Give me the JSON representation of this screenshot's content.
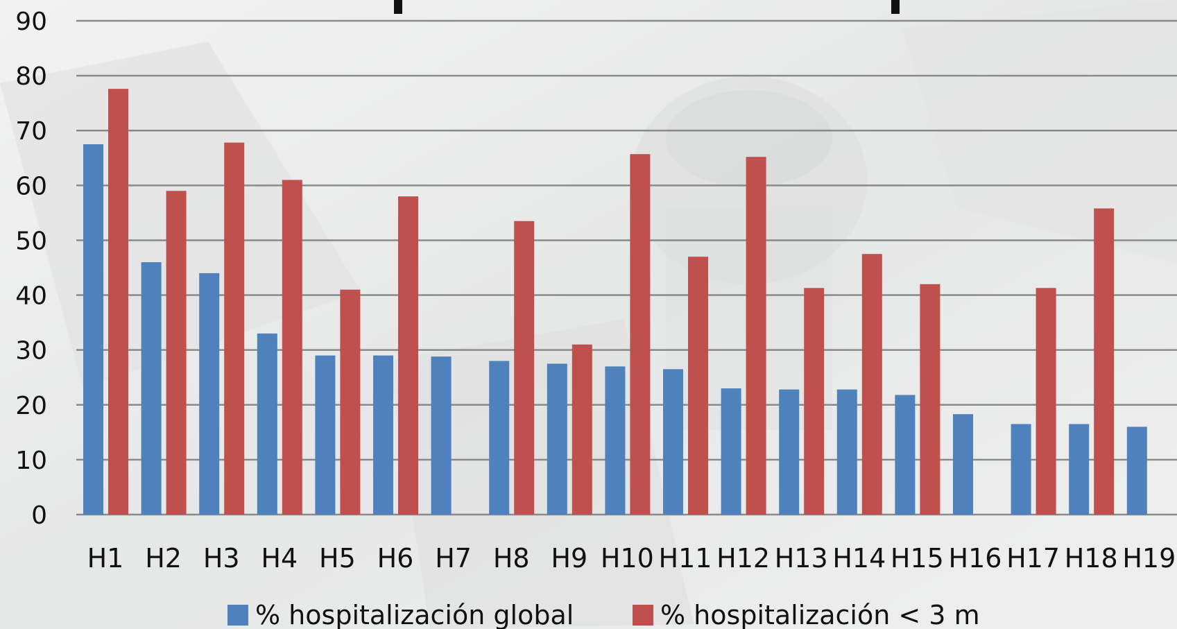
{
  "chart_data": {
    "type": "bar",
    "categories": [
      "H1",
      "H2",
      "H3",
      "H4",
      "H5",
      "H6",
      "H7",
      "H8",
      "H9",
      "H10",
      "H11",
      "H12",
      "H13",
      "H14",
      "H15",
      "H16",
      "H17",
      "H18",
      "H19"
    ],
    "series": [
      {
        "name": "% hospitalización global",
        "color": "#4f81bd",
        "values": [
          67.5,
          46,
          44,
          33,
          29,
          29,
          28.8,
          28,
          27.5,
          27,
          26.5,
          23,
          22.8,
          22.8,
          21.8,
          18.3,
          16.5,
          16.5,
          16
        ]
      },
      {
        "name": "% hospitalización < 3  m",
        "color": "#c0504d",
        "values": [
          77.6,
          59,
          67.8,
          61,
          41,
          58,
          null,
          53.5,
          31,
          65.7,
          47,
          65.2,
          41.3,
          47.5,
          42,
          null,
          41.3,
          55.8,
          null
        ]
      }
    ],
    "ylim": [
      0,
      90
    ],
    "yticks": [
      0,
      10,
      20,
      30,
      40,
      50,
      60,
      70,
      80,
      90
    ],
    "grid": true,
    "legend": "bottom"
  }
}
